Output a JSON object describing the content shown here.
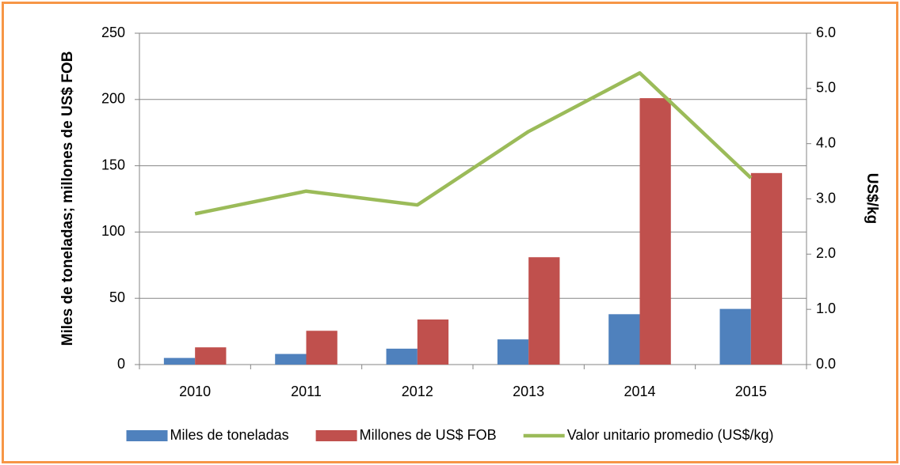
{
  "chart_data": {
    "type": "bar",
    "categories": [
      "2010",
      "2011",
      "2012",
      "2013",
      "2014",
      "2015"
    ],
    "series": [
      {
        "name": "Miles de toneladas",
        "type": "bar",
        "color": "#4f81bd",
        "values": [
          5,
          8,
          12,
          19,
          38,
          42
        ]
      },
      {
        "name": "Millones de US$ FOB",
        "type": "bar",
        "color": "#c0504d",
        "values": [
          13,
          25.5,
          34,
          81,
          201,
          144.5
        ]
      },
      {
        "name": "Valor unitario promedio (US$/kg)",
        "type": "line",
        "axis": "y2",
        "color": "#9bbb59",
        "values": [
          2.73,
          3.14,
          2.89,
          4.22,
          5.28,
          3.38
        ]
      }
    ],
    "y_label": "Miles de toneladas; millones de US$ FOB",
    "y2_label": "US$/kg",
    "ylim": [
      0,
      250
    ],
    "yticks": [
      0,
      50,
      100,
      150,
      200,
      250
    ],
    "y2lim": [
      0,
      6
    ],
    "y2ticks": [
      {
        "value": 0,
        "label": "0.0"
      },
      {
        "value": 1,
        "label": "1.0"
      },
      {
        "value": 2,
        "label": "2.0"
      },
      {
        "value": 3,
        "label": "3.0"
      },
      {
        "value": 4,
        "label": "4.0"
      },
      {
        "value": 5,
        "label": "5.0"
      },
      {
        "value": 6,
        "label": "6.0"
      }
    ],
    "grid": true,
    "legend": "bottom"
  }
}
